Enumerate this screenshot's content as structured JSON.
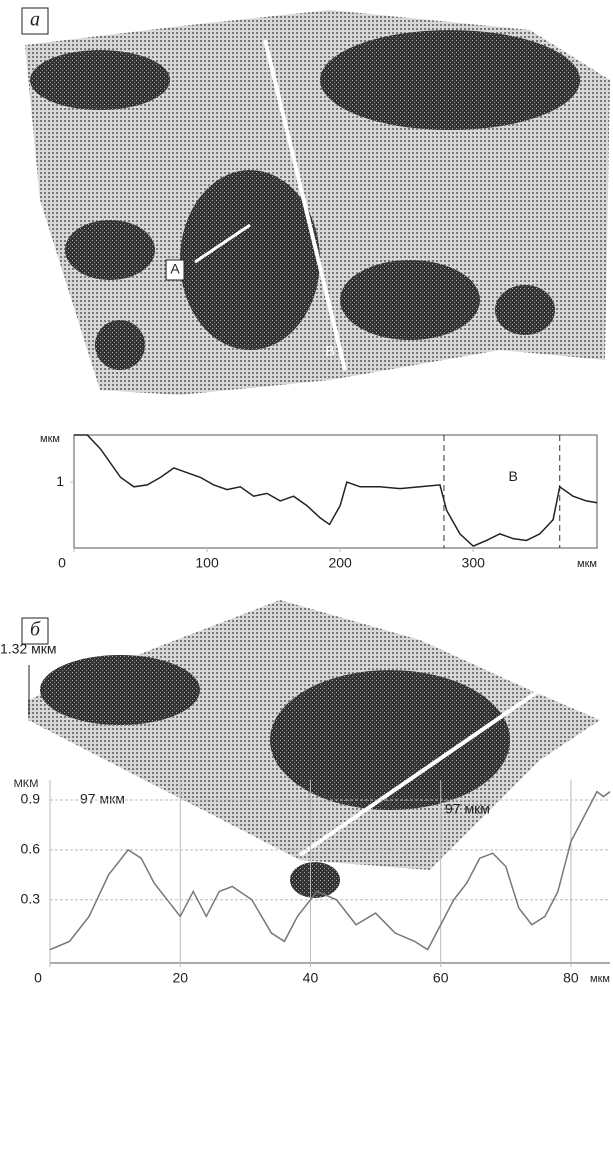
{
  "panels": [
    {
      "label": "а",
      "markers": [
        "A",
        "B"
      ]
    },
    {
      "label": "б",
      "height_label": "1.32 мкм",
      "width_labels": [
        "97 мкм",
        "97 мкм"
      ]
    }
  ],
  "chart_data": [
    {
      "type": "line",
      "y_label": "мкм",
      "x_unit": "мкм",
      "annotation": "B",
      "color": "#222222",
      "grid": false,
      "vlines": [
        278,
        365
      ],
      "x": [
        0,
        10,
        20,
        35,
        45,
        55,
        65,
        75,
        85,
        95,
        105,
        115,
        125,
        135,
        145,
        155,
        165,
        175,
        185,
        192,
        200,
        205,
        215,
        230,
        245,
        260,
        275,
        280,
        290,
        300,
        310,
        320,
        330,
        340,
        350,
        360,
        365,
        375,
        385,
        393
      ],
      "values": [
        1.5,
        1.5,
        1.35,
        1.05,
        0.95,
        0.97,
        1.05,
        1.15,
        1.1,
        1.05,
        0.97,
        0.92,
        0.95,
        0.85,
        0.88,
        0.8,
        0.85,
        0.75,
        0.62,
        0.55,
        0.75,
        1.0,
        0.95,
        0.95,
        0.93,
        0.95,
        0.97,
        0.7,
        0.45,
        0.32,
        0.38,
        0.45,
        0.4,
        0.38,
        0.45,
        0.6,
        0.95,
        0.85,
        0.8,
        0.78
      ],
      "xlim": [
        0,
        393
      ],
      "ylim": [
        0.3,
        1.5
      ],
      "xticks": [
        0,
        100,
        200,
        300
      ],
      "yticks": [
        1
      ]
    },
    {
      "type": "line",
      "y_label": "МКМ",
      "x_unit": "мкм",
      "color": "#777777",
      "grid": true,
      "x": [
        0,
        3,
        6,
        9,
        12,
        14,
        16,
        18,
        20,
        22,
        24,
        26,
        28,
        31,
        34,
        36,
        38,
        41,
        44,
        47,
        50,
        53,
        56,
        58,
        60,
        62,
        64,
        66,
        68,
        70,
        72,
        74,
        76,
        78,
        80,
        82,
        84,
        85,
        86
      ],
      "values": [
        0,
        0.05,
        0.2,
        0.45,
        0.6,
        0.55,
        0.4,
        0.3,
        0.2,
        0.35,
        0.2,
        0.35,
        0.38,
        0.3,
        0.1,
        0.05,
        0.2,
        0.35,
        0.3,
        0.15,
        0.22,
        0.1,
        0.05,
        0,
        0.15,
        0.3,
        0.4,
        0.55,
        0.58,
        0.5,
        0.25,
        0.15,
        0.2,
        0.35,
        0.65,
        0.8,
        0.95,
        0.92,
        0.95
      ],
      "xlim": [
        0,
        86
      ],
      "ylim": [
        -0.08,
        1.02
      ],
      "xticks": [
        0,
        20,
        40,
        60,
        80
      ],
      "yticks": [
        0.3,
        0.6,
        0.9
      ]
    }
  ]
}
